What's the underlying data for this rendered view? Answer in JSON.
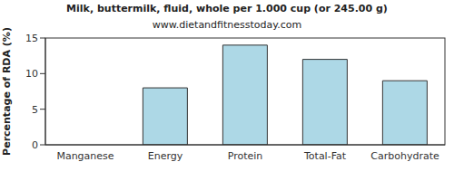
{
  "chart_data": {
    "type": "bar",
    "title": "Milk, buttermilk, fluid, whole per 1.000 cup (or 245.00 g)",
    "subtitle": "www.dietandfitnesstoday.com",
    "y_label": "Percentage of RDA (%)",
    "categories": [
      "Manganese",
      "Energy",
      "Protein",
      "Total-Fat",
      "Carbohydrate"
    ],
    "values": [
      0,
      8,
      14,
      12,
      9
    ],
    "color": "#add8e6",
    "ylim": [
      0,
      15
    ],
    "yticks": [
      0,
      5,
      10,
      15
    ],
    "grid": false
  }
}
